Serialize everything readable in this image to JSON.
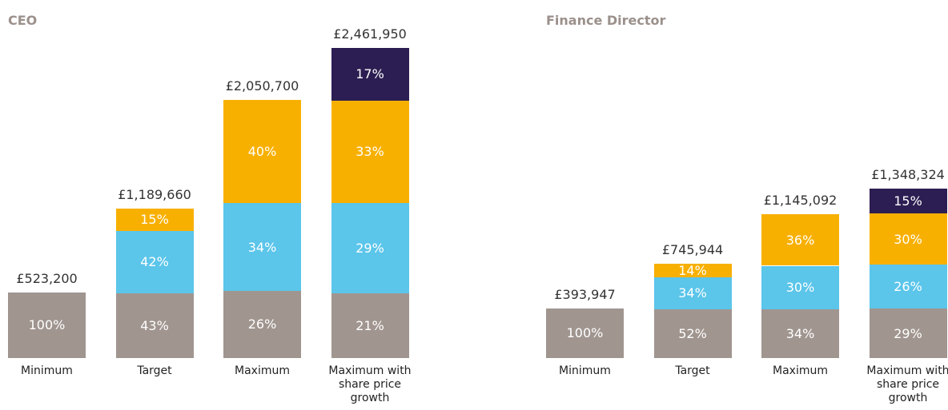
{
  "chart_data": [
    {
      "type": "bar",
      "title": "CEO",
      "categories": [
        "Minimum",
        "Target",
        "Maximum",
        "Maximum with share price growth"
      ],
      "series": [
        {
          "color": "#a0958f",
          "values": [
            100,
            43,
            26,
            21
          ],
          "value_labels": [
            "100%",
            "43%",
            "26%",
            "21%"
          ]
        },
        {
          "color": "#5bc5ea",
          "values": [
            null,
            42,
            34,
            29
          ],
          "value_labels": [
            null,
            "42%",
            "34%",
            "29%"
          ]
        },
        {
          "color": "#f8b000",
          "values": [
            null,
            15,
            40,
            33
          ],
          "value_labels": [
            null,
            "15%",
            "40%",
            "33%"
          ]
        },
        {
          "color": "#2c1e52",
          "values": [
            null,
            null,
            null,
            17
          ],
          "value_labels": [
            null,
            null,
            null,
            "17%"
          ]
        }
      ],
      "totals": {
        "values": [
          523200,
          1189660,
          2050700,
          2461950
        ],
        "value_labels": [
          "£523,200",
          "£1,189,660",
          "£2,050,700",
          "£2,461,950"
        ]
      }
    },
    {
      "type": "bar",
      "title": "Finance Director",
      "categories": [
        "Minimum",
        "Target",
        "Maximum",
        "Maximum with share price growth"
      ],
      "series": [
        {
          "color": "#a0958f",
          "values": [
            100,
            52,
            34,
            29
          ],
          "value_labels": [
            "100%",
            "52%",
            "34%",
            "29%"
          ]
        },
        {
          "color": "#5bc5ea",
          "values": [
            null,
            34,
            30,
            26
          ],
          "value_labels": [
            null,
            "34%",
            "30%",
            "26%"
          ]
        },
        {
          "color": "#f8b000",
          "values": [
            null,
            14,
            36,
            30
          ],
          "value_labels": [
            null,
            "14%",
            "36%",
            "30%"
          ]
        },
        {
          "color": "#2c1e52",
          "values": [
            null,
            null,
            null,
            15
          ],
          "value_labels": [
            null,
            null,
            null,
            "15%"
          ]
        }
      ],
      "totals": {
        "values": [
          393947,
          745944,
          1145092,
          1348324
        ],
        "value_labels": [
          "£393,947",
          "£745,944",
          "£1,145,092",
          "£1,348,324"
        ]
      }
    }
  ]
}
